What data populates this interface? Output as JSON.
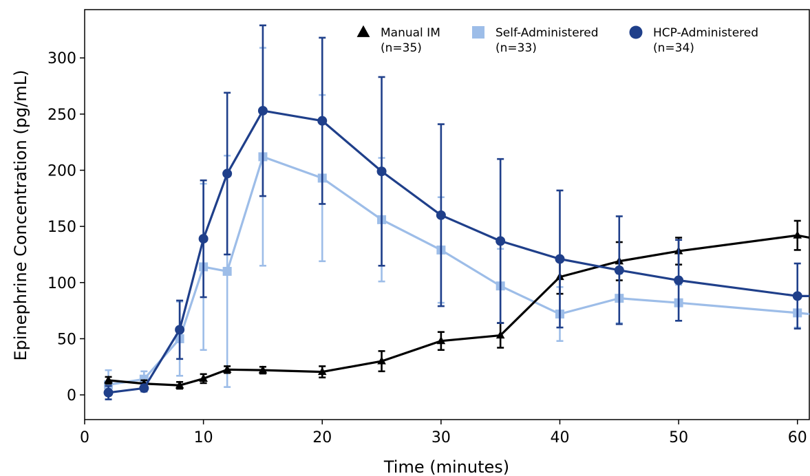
{
  "chart_data": {
    "type": "line",
    "xlabel": "Time (minutes)",
    "ylabel": "Epinephrine Concentration (pg/mL)",
    "xlim": [
      0,
      61
    ],
    "ylim": [
      -22,
      343
    ],
    "x_ticks": [
      0,
      10,
      20,
      30,
      40,
      50,
      60
    ],
    "y_ticks": [
      0,
      50,
      100,
      150,
      200,
      250,
      300
    ],
    "grid": false,
    "legend_position": "top-right",
    "series": [
      {
        "name": "Manual IM",
        "legend_lines": [
          "Manual IM",
          "(n=35)"
        ],
        "marker": "triangle",
        "color": "#000000",
        "x": [
          2,
          5,
          8,
          10,
          12,
          15,
          20,
          25,
          30,
          35,
          40,
          45,
          50,
          60,
          61
        ],
        "y": [
          13,
          10,
          8.5,
          14.5,
          22.5,
          22,
          20.5,
          30,
          48,
          53,
          105,
          119,
          128,
          142,
          140
        ],
        "err_low": [
          3,
          3,
          3,
          4,
          3,
          3,
          5,
          9,
          8,
          11,
          15,
          17,
          12,
          13,
          null
        ],
        "err_high": [
          3,
          3,
          3,
          4,
          3,
          3,
          5,
          9,
          8,
          11,
          15,
          17,
          12,
          13,
          null
        ]
      },
      {
        "name": "Self-Administered",
        "legend_lines": [
          "Self-Administered",
          "(n=33)"
        ],
        "marker": "square",
        "color": "#9dbde8",
        "x": [
          2,
          5,
          8,
          10,
          12,
          15,
          20,
          25,
          30,
          35,
          40,
          45,
          50,
          60,
          61
        ],
        "y": [
          9,
          14,
          50,
          114,
          110,
          212,
          193,
          156,
          129,
          97,
          72,
          86,
          82,
          73,
          72
        ],
        "err_low": [
          13,
          7,
          33,
          74,
          103,
          97,
          74,
          55,
          47,
          33,
          24,
          22,
          16,
          13,
          null
        ],
        "err_high": [
          13,
          7,
          33,
          74,
          103,
          97,
          74,
          55,
          47,
          33,
          24,
          22,
          16,
          13,
          null
        ]
      },
      {
        "name": "HCP-Administered",
        "legend_lines": [
          "HCP-Administered",
          "(n=34)"
        ],
        "marker": "circle",
        "color": "#1f3f8a",
        "x": [
          2,
          5,
          8,
          10,
          12,
          15,
          20,
          25,
          30,
          35,
          40,
          45,
          50,
          60,
          61
        ],
        "y": [
          2,
          6,
          58,
          139,
          197,
          253,
          244,
          199,
          160,
          137,
          121,
          111,
          102,
          88,
          88
        ],
        "err_low": [
          6,
          3,
          26,
          52,
          72,
          76,
          74,
          84,
          81,
          73,
          61,
          48,
          36,
          29,
          null
        ],
        "err_high": [
          6,
          3,
          26,
          52,
          72,
          76,
          74,
          84,
          81,
          73,
          61,
          48,
          36,
          29,
          null
        ]
      }
    ]
  }
}
